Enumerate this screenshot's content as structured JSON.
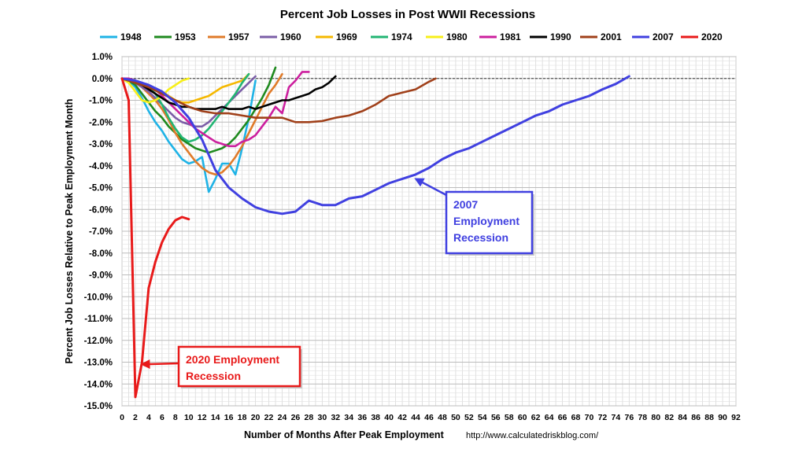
{
  "chart_data": {
    "type": "line",
    "title": "Percent Job Losses in Post WWII Recessions",
    "xlabel": "Number of Months After Peak Employment",
    "ylabel": "Percent Job Losses Relative to Peak Employment Month",
    "source": "http://www.calculatedriskblog.com/",
    "xlim": [
      0,
      92
    ],
    "ylim": [
      -15.0,
      1.0
    ],
    "x_ticks": [
      0,
      2,
      4,
      6,
      8,
      10,
      12,
      14,
      16,
      18,
      20,
      22,
      24,
      26,
      28,
      30,
      32,
      34,
      36,
      38,
      40,
      42,
      44,
      46,
      48,
      50,
      52,
      54,
      56,
      58,
      60,
      62,
      64,
      66,
      68,
      70,
      72,
      74,
      76,
      78,
      80,
      82,
      84,
      86,
      88,
      90,
      92
    ],
    "y_ticks": [
      "1.0%",
      "0.0%",
      "-1.0%",
      "-2.0%",
      "-3.0%",
      "-4.0%",
      "-5.0%",
      "-6.0%",
      "-7.0%",
      "-8.0%",
      "-9.0%",
      "-10.0%",
      "-11.0%",
      "-12.0%",
      "-13.0%",
      "-14.0%",
      "-15.0%"
    ],
    "y_tick_values": [
      1,
      0,
      -1,
      -2,
      -3,
      -4,
      -5,
      -6,
      -7,
      -8,
      -9,
      -10,
      -11,
      -12,
      -13,
      -14,
      -15
    ],
    "grid": true,
    "legend_position": "top",
    "series": [
      {
        "name": "1948",
        "color": "#1fb3e6",
        "x": [
          0,
          1,
          2,
          3,
          4,
          5,
          6,
          7,
          8,
          9,
          10,
          11,
          12,
          13,
          14,
          15,
          16,
          17,
          18,
          19,
          20
        ],
        "y": [
          0,
          -0.1,
          -0.4,
          -0.9,
          -1.5,
          -2.0,
          -2.4,
          -2.9,
          -3.3,
          -3.7,
          -3.9,
          -3.8,
          -3.6,
          -5.2,
          -4.6,
          -3.9,
          -3.9,
          -4.4,
          -3.2,
          -1.8,
          -0.1
        ]
      },
      {
        "name": "1953",
        "color": "#1f8a1f",
        "x": [
          0,
          1,
          2,
          3,
          4,
          5,
          6,
          7,
          8,
          9,
          10,
          11,
          12,
          13,
          14,
          15,
          16,
          17,
          18,
          19,
          20,
          21,
          22,
          23
        ],
        "y": [
          0,
          -0.1,
          -0.3,
          -0.7,
          -1.1,
          -1.5,
          -1.8,
          -2.2,
          -2.5,
          -2.8,
          -3.0,
          -3.2,
          -3.3,
          -3.4,
          -3.3,
          -3.2,
          -3.0,
          -2.7,
          -2.3,
          -1.9,
          -1.4,
          -0.9,
          -0.3,
          0.5
        ]
      },
      {
        "name": "1957",
        "color": "#e07b2a",
        "x": [
          0,
          1,
          2,
          3,
          4,
          5,
          6,
          7,
          8,
          9,
          10,
          11,
          12,
          13,
          14,
          15,
          16,
          17,
          18,
          19,
          20,
          21,
          22,
          23,
          24
        ],
        "y": [
          0,
          -0.1,
          -0.2,
          -0.4,
          -0.7,
          -1.0,
          -1.4,
          -1.9,
          -2.5,
          -3.0,
          -3.4,
          -3.8,
          -4.1,
          -4.3,
          -4.4,
          -4.3,
          -4.0,
          -3.6,
          -3.1,
          -2.5,
          -1.9,
          -1.3,
          -0.7,
          -0.3,
          0.2
        ]
      },
      {
        "name": "1960",
        "color": "#7b5ea7",
        "x": [
          0,
          1,
          2,
          3,
          4,
          5,
          6,
          7,
          8,
          9,
          10,
          11,
          12,
          13,
          14,
          15,
          16,
          17,
          18,
          19,
          20
        ],
        "y": [
          0,
          -0.1,
          -0.2,
          -0.4,
          -0.6,
          -0.9,
          -1.2,
          -1.5,
          -1.8,
          -2.0,
          -2.1,
          -2.2,
          -2.2,
          -2.0,
          -1.7,
          -1.4,
          -1.1,
          -0.8,
          -0.5,
          -0.2,
          0.1
        ]
      },
      {
        "name": "1969",
        "color": "#f5b800",
        "x": [
          0,
          1,
          2,
          3,
          4,
          5,
          6,
          7,
          8,
          9,
          10,
          11,
          12,
          13,
          14,
          15,
          16,
          17,
          18,
          19
        ],
        "y": [
          0,
          -0.1,
          -0.2,
          -0.3,
          -0.4,
          -0.5,
          -0.6,
          -0.8,
          -1.0,
          -1.1,
          -1.1,
          -1.0,
          -0.9,
          -0.8,
          -0.6,
          -0.4,
          -0.3,
          -0.2,
          -0.1,
          0.2
        ]
      },
      {
        "name": "1974",
        "color": "#22b573",
        "x": [
          0,
          1,
          2,
          3,
          4,
          5,
          6,
          7,
          8,
          9,
          10,
          11,
          12,
          13,
          14,
          15,
          16,
          17,
          18,
          19
        ],
        "y": [
          0,
          -0.1,
          -0.1,
          -0.2,
          -0.4,
          -0.7,
          -1.2,
          -1.8,
          -2.3,
          -2.7,
          -2.9,
          -2.8,
          -2.6,
          -2.3,
          -1.9,
          -1.5,
          -1.1,
          -0.7,
          -0.2,
          0.2
        ]
      },
      {
        "name": "1980",
        "color": "#f7ef1a",
        "x": [
          0,
          1,
          2,
          3,
          4,
          5,
          6,
          7,
          8,
          9,
          10
        ],
        "y": [
          0,
          -0.2,
          -0.6,
          -1.0,
          -1.1,
          -1.0,
          -0.8,
          -0.5,
          -0.3,
          -0.1,
          0.0
        ]
      },
      {
        "name": "1981",
        "color": "#cc1f9e",
        "x": [
          0,
          1,
          2,
          3,
          4,
          5,
          6,
          7,
          8,
          9,
          10,
          11,
          12,
          13,
          14,
          15,
          16,
          17,
          18,
          19,
          20,
          21,
          22,
          23,
          24,
          25,
          26,
          27,
          28
        ],
        "y": [
          0,
          0,
          -0.1,
          -0.2,
          -0.3,
          -0.5,
          -0.8,
          -1.1,
          -1.4,
          -1.7,
          -2.0,
          -2.3,
          -2.5,
          -2.7,
          -2.9,
          -3.0,
          -3.1,
          -3.1,
          -2.9,
          -2.8,
          -2.6,
          -2.2,
          -1.8,
          -1.3,
          -1.6,
          -0.4,
          -0.1,
          0.3,
          0.3
        ]
      },
      {
        "name": "1990",
        "color": "#000000",
        "x": [
          0,
          1,
          2,
          3,
          4,
          5,
          6,
          7,
          8,
          9,
          10,
          11,
          12,
          13,
          14,
          15,
          16,
          17,
          18,
          19,
          20,
          21,
          22,
          23,
          24,
          25,
          26,
          27,
          28,
          29,
          30,
          31,
          32
        ],
        "y": [
          0,
          -0.1,
          -0.2,
          -0.3,
          -0.5,
          -0.7,
          -0.9,
          -1.1,
          -1.2,
          -1.3,
          -1.3,
          -1.4,
          -1.4,
          -1.4,
          -1.4,
          -1.3,
          -1.4,
          -1.4,
          -1.4,
          -1.3,
          -1.4,
          -1.3,
          -1.2,
          -1.1,
          -1.0,
          -1.0,
          -0.9,
          -0.8,
          -0.7,
          -0.5,
          -0.4,
          -0.2,
          0.1
        ]
      },
      {
        "name": "2001",
        "color": "#a0401a",
        "x": [
          0,
          2,
          4,
          6,
          8,
          10,
          12,
          14,
          16,
          18,
          20,
          22,
          24,
          26,
          28,
          30,
          32,
          34,
          36,
          38,
          40,
          42,
          44,
          46,
          47
        ],
        "y": [
          0,
          -0.2,
          -0.4,
          -0.7,
          -1.0,
          -1.3,
          -1.5,
          -1.6,
          -1.6,
          -1.7,
          -1.8,
          -1.8,
          -1.8,
          -2.0,
          -2.0,
          -1.95,
          -1.8,
          -1.7,
          -1.5,
          -1.2,
          -0.8,
          -0.65,
          -0.5,
          -0.15,
          0.0
        ]
      },
      {
        "name": "2007",
        "color": "#4040e0",
        "x": [
          0,
          2,
          4,
          6,
          8,
          10,
          12,
          14,
          16,
          18,
          20,
          22,
          24,
          26,
          28,
          30,
          32,
          34,
          36,
          38,
          40,
          42,
          44,
          46,
          48,
          50,
          52,
          54,
          56,
          58,
          60,
          62,
          64,
          66,
          68,
          70,
          72,
          74,
          76
        ],
        "y": [
          0,
          -0.1,
          -0.3,
          -0.6,
          -1.1,
          -1.8,
          -2.8,
          -4.2,
          -5.0,
          -5.5,
          -5.9,
          -6.1,
          -6.2,
          -6.1,
          -5.6,
          -5.8,
          -5.8,
          -5.5,
          -5.4,
          -5.1,
          -4.8,
          -4.6,
          -4.4,
          -4.1,
          -3.7,
          -3.4,
          -3.2,
          -2.9,
          -2.6,
          -2.3,
          -2.0,
          -1.7,
          -1.5,
          -1.2,
          -1.0,
          -0.8,
          -0.5,
          -0.25,
          0.1
        ]
      },
      {
        "name": "2020",
        "color": "#e81a1a",
        "x": [
          0,
          1,
          2,
          3,
          4,
          5,
          6,
          7,
          8,
          9,
          10
        ],
        "y": [
          0,
          -1.0,
          -14.6,
          -13.0,
          -9.6,
          -8.4,
          -7.5,
          -6.9,
          -6.5,
          -6.35,
          -6.45
        ]
      }
    ],
    "annotations": [
      {
        "text_lines": [
          "2007",
          "Employment",
          "Recession"
        ],
        "color": "#4040e0",
        "points_to": {
          "x": 44,
          "y": -4.6
        }
      },
      {
        "text_lines": [
          "2020 Employment",
          "Recession"
        ],
        "color": "#e81a1a",
        "points_to": {
          "x": 3,
          "y": -13.1
        }
      }
    ]
  }
}
